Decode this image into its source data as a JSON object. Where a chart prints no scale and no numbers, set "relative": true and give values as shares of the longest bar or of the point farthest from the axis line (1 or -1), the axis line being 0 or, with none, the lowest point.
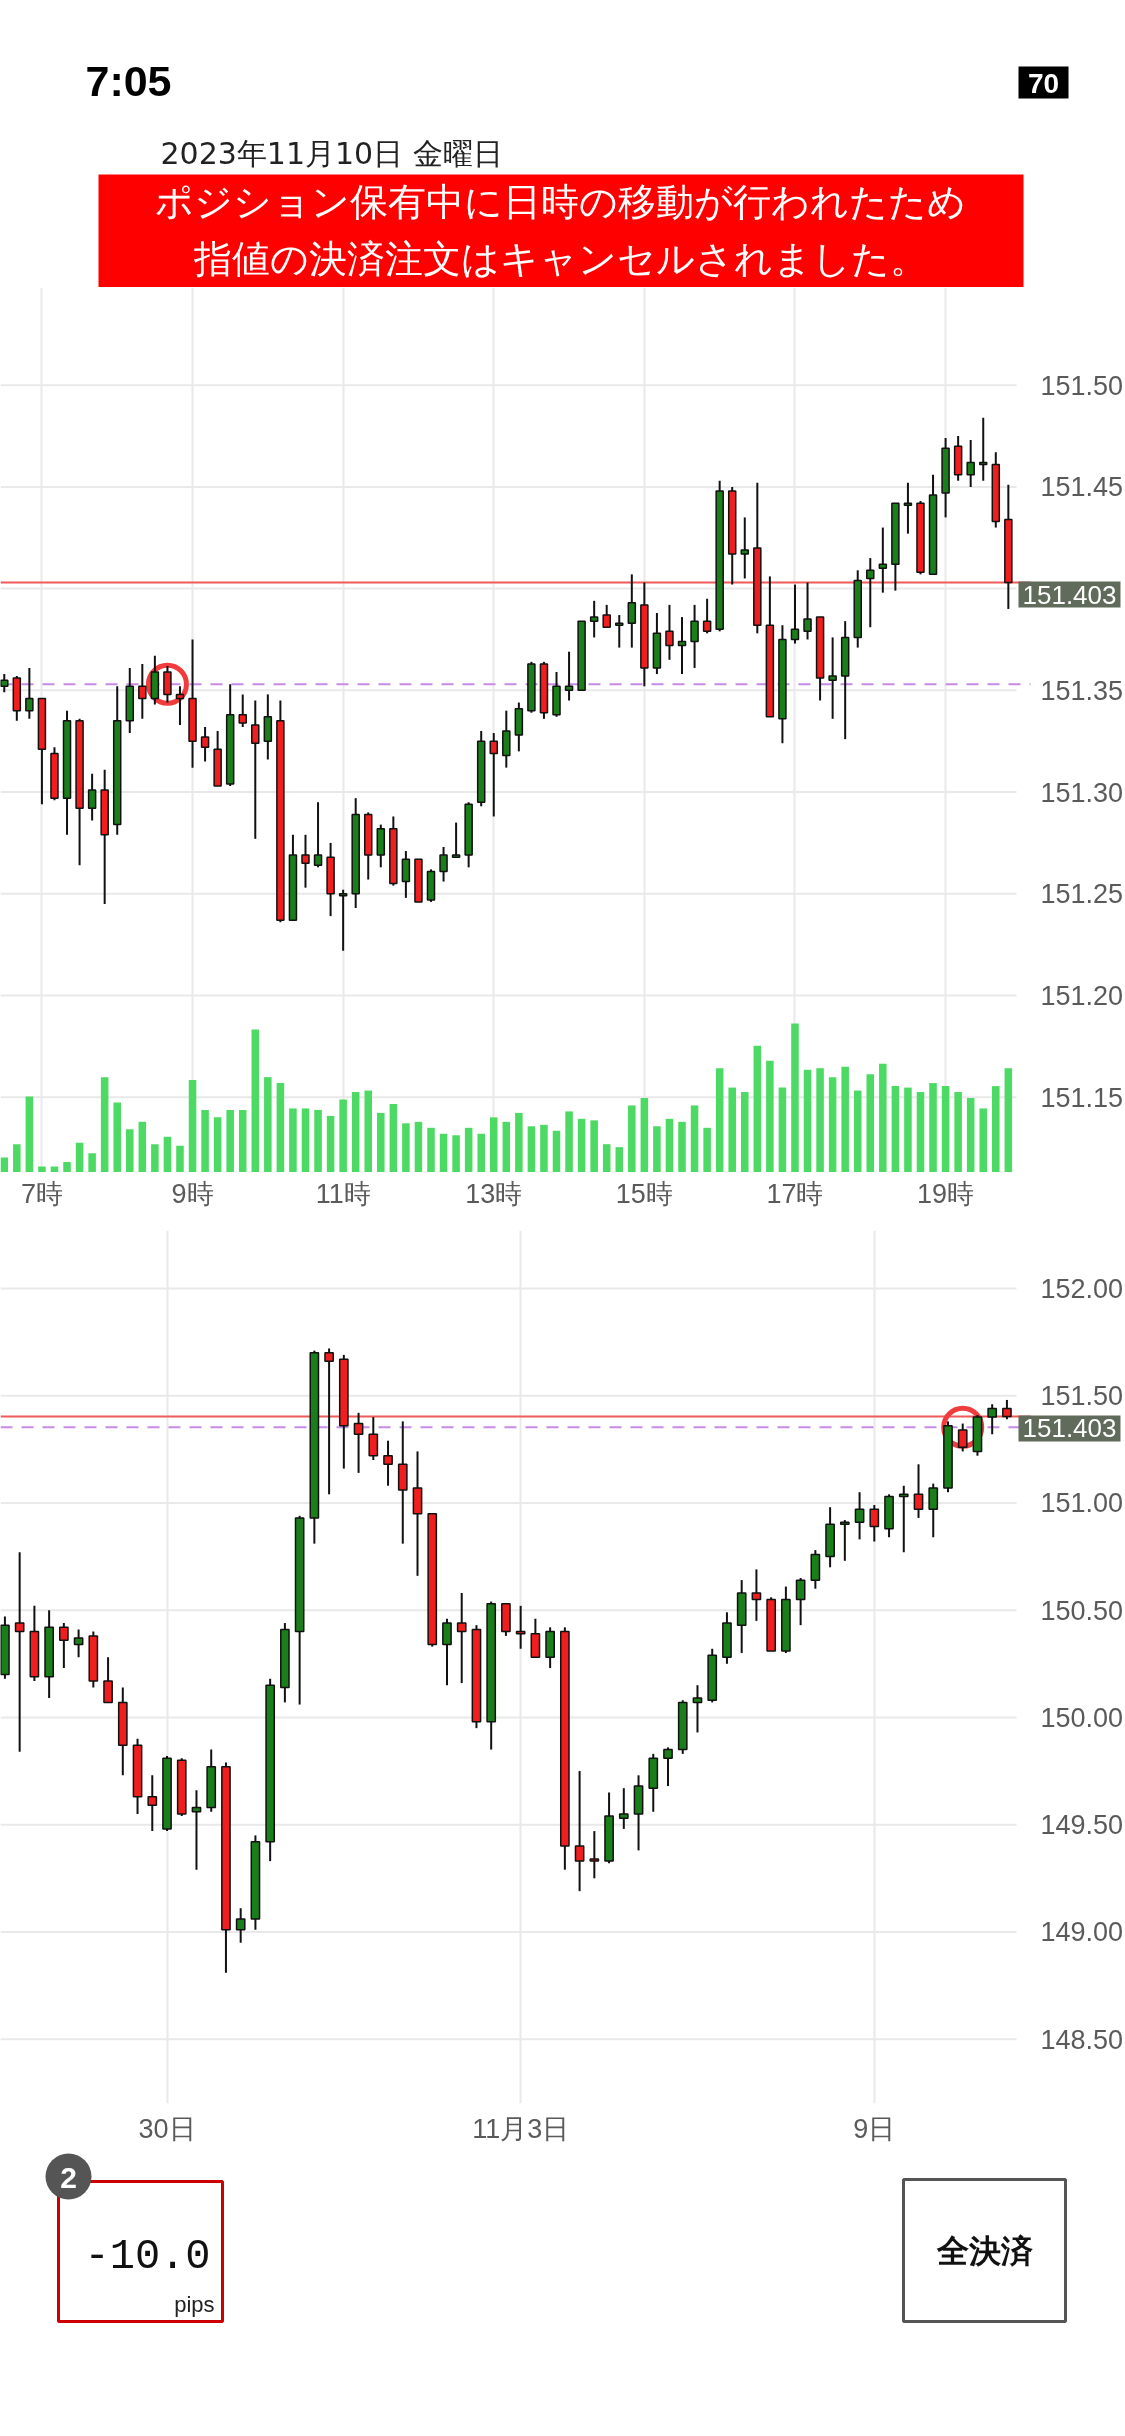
{
  "chart_data": [
    {
      "type": "candlestick",
      "title": "2023年11月10日 金曜日",
      "annotations": [
        "7:05",
        "70",
        "ポジション保有中に日時の移動が行われたため",
        "指値の決済注文はキャンセルされました。"
      ],
      "categories": [
        null,
        null,
        null,
        "7時",
        null,
        null,
        null,
        null,
        null,
        null,
        null,
        null,
        null,
        null,
        null,
        "9時",
        null,
        null,
        null,
        null,
        null,
        null,
        null,
        null,
        null,
        null,
        null,
        "11時",
        null,
        null,
        null,
        null,
        null,
        null,
        null,
        null,
        null,
        null,
        null,
        "13時",
        null,
        null,
        null,
        null,
        null,
        null,
        null,
        null,
        null,
        null,
        null,
        "15時",
        null,
        null,
        null,
        null,
        null,
        null,
        null,
        null,
        null,
        null,
        null,
        "17時",
        null,
        null,
        null,
        null,
        null,
        null,
        null,
        null,
        null,
        null,
        null,
        "19時",
        null,
        null,
        null,
        null,
        null
      ],
      "ohlc": [
        [
          151.352,
          151.358,
          151.349,
          151.355
        ],
        [
          151.356,
          151.357,
          151.335,
          151.34
        ],
        [
          151.34,
          151.361,
          151.336,
          151.346
        ],
        [
          151.346,
          151.346,
          151.294,
          151.321
        ],
        [
          151.319,
          151.322,
          151.296,
          151.297
        ],
        [
          151.297,
          151.34,
          151.279,
          151.335
        ],
        [
          151.335,
          151.336,
          151.264,
          151.292
        ],
        [
          151.292,
          151.309,
          151.286,
          151.301
        ],
        [
          151.301,
          151.311,
          151.245,
          151.279
        ],
        [
          151.284,
          151.352,
          151.279,
          151.335
        ],
        [
          151.335,
          151.361,
          151.329,
          151.352
        ],
        [
          151.352,
          151.363,
          151.336,
          151.346
        ],
        [
          151.346,
          151.367,
          151.343,
          151.359
        ],
        [
          151.359,
          151.362,
          151.344,
          151.348
        ],
        [
          151.348,
          151.352,
          151.333,
          151.346
        ],
        [
          151.346,
          151.375,
          151.312,
          151.325
        ],
        [
          151.327,
          151.332,
          151.315,
          151.322
        ],
        [
          151.321,
          151.33,
          151.303,
          151.303
        ],
        [
          151.304,
          151.353,
          151.303,
          151.338
        ],
        [
          151.338,
          151.348,
          151.332,
          151.334
        ],
        [
          151.333,
          151.345,
          151.277,
          151.324
        ],
        [
          151.325,
          151.348,
          151.316,
          151.337
        ],
        [
          151.335,
          151.345,
          151.236,
          151.237
        ],
        [
          151.237,
          151.279,
          151.237,
          151.269
        ],
        [
          151.269,
          151.279,
          151.253,
          151.265
        ],
        [
          151.264,
          151.295,
          151.263,
          151.269
        ],
        [
          151.268,
          151.275,
          151.239,
          151.25
        ],
        [
          151.249,
          151.252,
          151.222,
          151.25
        ],
        [
          151.25,
          151.297,
          151.243,
          151.289
        ],
        [
          151.289,
          151.29,
          151.257,
          151.269
        ],
        [
          151.269,
          151.284,
          151.263,
          151.282
        ],
        [
          151.282,
          151.288,
          151.254,
          151.255
        ],
        [
          151.256,
          151.271,
          151.248,
          151.267
        ],
        [
          151.267,
          151.267,
          151.246,
          151.246
        ],
        [
          151.247,
          151.262,
          151.246,
          151.261
        ],
        [
          151.261,
          151.273,
          151.256,
          151.269
        ],
        [
          151.268,
          151.285,
          151.268,
          151.269
        ],
        [
          151.269,
          151.295,
          151.263,
          151.294
        ],
        [
          151.295,
          151.33,
          151.293,
          151.325
        ],
        [
          151.325,
          151.329,
          151.288,
          151.319
        ],
        [
          151.318,
          151.34,
          151.312,
          151.33
        ],
        [
          151.328,
          151.344,
          151.32,
          151.341
        ],
        [
          151.34,
          151.364,
          151.339,
          151.363
        ],
        [
          151.363,
          151.364,
          151.336,
          151.339
        ],
        [
          151.338,
          151.359,
          151.337,
          151.352
        ],
        [
          151.35,
          151.369,
          151.345,
          151.352
        ],
        [
          151.35,
          151.384,
          151.35,
          151.384
        ],
        [
          151.384,
          151.394,
          151.376,
          151.386
        ],
        [
          151.387,
          151.392,
          151.381,
          151.381
        ],
        [
          151.382,
          151.387,
          151.371,
          151.383
        ],
        [
          151.383,
          151.407,
          151.371,
          151.393
        ],
        [
          151.392,
          151.403,
          151.352,
          151.361
        ],
        [
          151.361,
          151.388,
          151.358,
          151.378
        ],
        [
          151.379,
          151.392,
          151.365,
          151.372
        ],
        [
          151.372,
          151.386,
          151.358,
          151.374
        ],
        [
          151.374,
          151.392,
          151.361,
          151.384
        ],
        [
          151.384,
          151.395,
          151.378,
          151.379
        ],
        [
          151.38,
          151.453,
          151.379,
          151.448
        ],
        [
          151.448,
          151.45,
          151.402,
          151.417
        ],
        [
          151.417,
          151.435,
          151.405,
          151.419
        ],
        [
          151.42,
          151.452,
          151.378,
          151.382
        ],
        [
          151.382,
          151.406,
          151.337,
          151.337
        ],
        [
          151.336,
          151.382,
          151.324,
          151.375
        ],
        [
          151.375,
          151.402,
          151.373,
          151.38
        ],
        [
          151.379,
          151.403,
          151.375,
          151.385
        ],
        [
          151.386,
          151.386,
          151.345,
          151.356
        ],
        [
          151.355,
          151.376,
          151.336,
          151.357
        ],
        [
          151.357,
          151.384,
          151.326,
          151.376
        ],
        [
          151.376,
          151.409,
          151.371,
          151.404
        ],
        [
          151.405,
          151.415,
          151.381,
          151.409
        ],
        [
          151.41,
          151.43,
          151.398,
          151.412
        ],
        [
          151.412,
          151.442,
          151.399,
          151.442
        ],
        [
          151.441,
          151.452,
          151.427,
          151.442
        ],
        [
          151.442,
          151.443,
          151.407,
          151.408
        ],
        [
          151.407,
          151.456,
          151.407,
          151.446
        ],
        [
          151.447,
          151.474,
          151.435,
          151.469
        ],
        [
          151.47,
          151.475,
          151.453,
          151.456
        ],
        [
          151.456,
          151.473,
          151.45,
          151.462
        ],
        [
          151.461,
          151.484,
          151.453,
          151.462
        ],
        [
          151.461,
          151.467,
          151.43,
          151.433
        ],
        [
          151.434,
          151.451,
          151.39,
          151.403
        ]
      ],
      "colors": [
        "#1a7f1a",
        "#f01e1e",
        "#1a7f1a",
        "#f01e1e",
        "#f01e1e",
        "#1a7f1a",
        "#f01e1e",
        "#1a7f1a",
        "#f01e1e",
        "#1a7f1a",
        "#1a7f1a",
        "#f01e1e",
        "#1a7f1a",
        "#f01e1e",
        "#f01e1e",
        "#f01e1e",
        "#f01e1e",
        "#f01e1e",
        "#1a7f1a",
        "#f01e1e",
        "#f01e1e",
        "#1a7f1a",
        "#f01e1e",
        "#1a7f1a",
        "#f01e1e",
        "#1a7f1a",
        "#f01e1e",
        "#1a7f1a",
        "#1a7f1a",
        "#f01e1e",
        "#1a7f1a",
        "#f01e1e",
        "#1a7f1a",
        "#f01e1e",
        "#1a7f1a",
        "#1a7f1a",
        "#1a7f1a",
        "#1a7f1a",
        "#1a7f1a",
        "#f01e1e",
        "#1a7f1a",
        "#1a7f1a",
        "#1a7f1a",
        "#f01e1e",
        "#1a7f1a",
        "#1a7f1a",
        "#1a7f1a",
        "#1a7f1a",
        "#f01e1e",
        "#1a7f1a",
        "#1a7f1a",
        "#f01e1e",
        "#1a7f1a",
        "#f01e1e",
        "#1a7f1a",
        "#1a7f1a",
        "#f01e1e",
        "#1a7f1a",
        "#f01e1e",
        "#1a7f1a",
        "#f01e1e",
        "#f01e1e",
        "#1a7f1a",
        "#1a7f1a",
        "#1a7f1a",
        "#f01e1e",
        "#1a7f1a",
        "#1a7f1a",
        "#1a7f1a",
        "#1a7f1a",
        "#1a7f1a",
        "#1a7f1a",
        "#1a7f1a",
        "#f01e1e",
        "#1a7f1a",
        "#1a7f1a",
        "#f01e1e",
        "#1a7f1a",
        "#1a7f1a",
        "#f01e1e",
        "#f01e1e"
      ],
      "series": [
        {
          "type": "scatter",
          "marker": "circle",
          "color": "#f03c3c",
          "values": [
            null,
            null,
            null,
            null,
            null,
            null,
            null,
            null,
            null,
            null,
            null,
            null,
            null,
            151.353,
            null,
            null,
            null,
            null,
            null,
            null,
            null,
            null,
            null,
            null,
            null,
            null,
            null,
            null,
            null,
            null,
            null,
            null,
            null,
            null,
            null,
            null,
            null,
            null,
            null,
            null,
            null,
            null,
            null,
            null,
            null,
            null,
            null,
            null,
            null,
            null,
            null,
            null,
            null,
            null,
            null,
            null,
            null,
            null,
            null,
            null,
            null,
            null,
            null,
            null,
            null,
            null,
            null,
            null,
            null,
            null,
            null,
            null,
            null,
            null,
            null,
            null,
            null,
            null,
            null,
            null,
            null
          ]
        }
      ],
      "ylim": [
        151.113,
        151.548
      ],
      "yticks": [
        151.15,
        {
          "value": 151.2,
          "label": "151.20"
        },
        151.25,
        {
          "value": 151.3,
          "label": "151.30"
        },
        151.35,
        {
          "value": 151.4,
          "label": null
        },
        151.45,
        {
          "value": 151.5,
          "label": "151.50"
        }
      ],
      "grid": true,
      "ref_lines": [
        {
          "axis": "y",
          "value": 151.403,
          "label": "151.403",
          "color": "#f05a5a"
        },
        {
          "axis": "y",
          "value": 151.353,
          "color": "#c78be6",
          "line_style": "dashed"
        }
      ]
    },
    {
      "type": "bar",
      "relative": true,
      "color": "#4cd964",
      "categories": [
        null,
        null,
        null,
        null,
        null,
        null,
        null,
        null,
        null,
        null,
        null,
        null,
        null,
        null,
        null,
        null,
        null,
        null,
        null,
        null,
        null,
        null,
        null,
        null,
        null,
        null,
        null,
        null,
        null,
        null,
        null,
        null,
        null,
        null,
        null,
        null,
        null,
        null,
        null,
        null,
        null,
        null,
        null,
        null,
        null,
        null,
        null,
        null,
        null,
        null,
        null,
        null,
        null,
        null,
        null,
        null,
        null,
        null,
        null,
        null,
        null,
        null,
        null,
        null,
        null,
        null,
        null,
        null,
        null,
        null,
        null,
        null,
        null,
        null,
        null,
        null,
        null,
        null,
        null,
        null,
        null
      ],
      "values": [
        0.1,
        0.19,
        0.51,
        0.04,
        0.04,
        0.07,
        0.2,
        0.13,
        0.64,
        0.47,
        0.29,
        0.34,
        0.19,
        0.24,
        0.18,
        0.62,
        0.42,
        0.37,
        0.42,
        0.42,
        0.96,
        0.64,
        0.6,
        0.43,
        0.43,
        0.42,
        0.38,
        0.49,
        0.54,
        0.55,
        0.4,
        0.46,
        0.33,
        0.34,
        0.3,
        0.26,
        0.25,
        0.3,
        0.26,
        0.37,
        0.34,
        0.4,
        0.31,
        0.32,
        0.28,
        0.41,
        0.36,
        0.35,
        0.19,
        0.17,
        0.45,
        0.5,
        0.31,
        0.36,
        0.34,
        0.45,
        0.3,
        0.7,
        0.57,
        0.54,
        0.85,
        0.75,
        0.57,
        1,
        0.69,
        0.7,
        0.64,
        0.71,
        0.55,
        0.66,
        0.73,
        0.58,
        0.57,
        0.54,
        0.6,
        0.58,
        0.54,
        0.5,
        0.43,
        0.58,
        0.7
      ]
    },
    {
      "type": "candlestick",
      "annotations": [
        "2",
        "-10.0",
        "pips",
        "全決済"
      ],
      "categories": [
        null,
        null,
        null,
        null,
        null,
        null,
        null,
        null,
        null,
        null,
        null,
        "30日",
        null,
        null,
        null,
        null,
        null,
        null,
        null,
        null,
        null,
        null,
        null,
        null,
        null,
        null,
        null,
        null,
        null,
        null,
        null,
        null,
        null,
        null,
        null,
        "11月3日",
        null,
        null,
        null,
        null,
        null,
        null,
        null,
        null,
        null,
        null,
        null,
        null,
        null,
        null,
        null,
        null,
        null,
        null,
        null,
        null,
        null,
        null,
        null,
        "9日",
        null,
        null,
        null,
        null,
        null,
        null,
        null,
        null,
        null
      ],
      "ohlc": [
        [
          150.2,
          150.47,
          150.18,
          150.43
        ],
        [
          150.44,
          150.77,
          149.84,
          150.4
        ],
        [
          150.4,
          150.52,
          150.17,
          150.19
        ],
        [
          150.19,
          150.5,
          150.09,
          150.42
        ],
        [
          150.42,
          150.44,
          150.23,
          150.36
        ],
        [
          150.34,
          150.41,
          150.28,
          150.37
        ],
        [
          150.38,
          150.4,
          150.14,
          150.17
        ],
        [
          150.17,
          150.28,
          150.07,
          150.07
        ],
        [
          150.07,
          150.14,
          149.73,
          149.87
        ],
        [
          149.87,
          149.9,
          149.55,
          149.63
        ],
        [
          149.63,
          149.73,
          149.47,
          149.59
        ],
        [
          149.48,
          149.82,
          149.47,
          149.81
        ],
        [
          149.8,
          149.81,
          149.54,
          149.55
        ],
        [
          149.56,
          149.66,
          149.29,
          149.58
        ],
        [
          149.58,
          149.85,
          149.56,
          149.77
        ],
        [
          149.77,
          149.79,
          148.81,
          149.01
        ],
        [
          149.01,
          149.11,
          148.95,
          149.06
        ],
        [
          149.06,
          149.45,
          149.01,
          149.42
        ],
        [
          149.42,
          150.18,
          149.33,
          150.15
        ],
        [
          150.14,
          150.44,
          150.07,
          150.41
        ],
        [
          150.4,
          150.94,
          150.06,
          150.93
        ],
        [
          150.93,
          151.71,
          150.81,
          151.7
        ],
        [
          151.7,
          151.72,
          151.04,
          151.66
        ],
        [
          151.67,
          151.69,
          151.16,
          151.36
        ],
        [
          151.37,
          151.42,
          151.14,
          151.32
        ],
        [
          151.32,
          151.4,
          151.2,
          151.22
        ],
        [
          151.22,
          151.29,
          151.08,
          151.18
        ],
        [
          151.18,
          151.38,
          150.81,
          151.06
        ],
        [
          151.07,
          151.24,
          150.66,
          150.95
        ],
        [
          150.95,
          150.95,
          150.33,
          150.34
        ],
        [
          150.34,
          150.46,
          150.15,
          150.44
        ],
        [
          150.44,
          150.58,
          150.16,
          150.4
        ],
        [
          150.41,
          150.43,
          149.95,
          149.98
        ],
        [
          149.98,
          150.54,
          149.85,
          150.53
        ],
        [
          150.53,
          150.53,
          150.38,
          150.4
        ],
        [
          150.4,
          150.52,
          150.32,
          150.39
        ],
        [
          150.39,
          150.46,
          150.28,
          150.28
        ],
        [
          150.28,
          150.42,
          150.23,
          150.4
        ],
        [
          150.4,
          150.42,
          149.29,
          149.4
        ],
        [
          149.4,
          149.75,
          149.19,
          149.33
        ],
        [
          149.34,
          149.47,
          149.25,
          149.33
        ],
        [
          149.33,
          149.65,
          149.32,
          149.54
        ],
        [
          149.53,
          149.67,
          149.48,
          149.55
        ],
        [
          149.55,
          149.73,
          149.38,
          149.68
        ],
        [
          149.67,
          149.83,
          149.56,
          149.81
        ],
        [
          149.81,
          149.86,
          149.68,
          149.85
        ],
        [
          149.85,
          150.08,
          149.83,
          150.07
        ],
        [
          150.07,
          150.15,
          149.93,
          150.09
        ],
        [
          150.08,
          150.32,
          150.07,
          150.29
        ],
        [
          150.28,
          150.49,
          150.25,
          150.44
        ],
        [
          150.43,
          150.64,
          150.3,
          150.58
        ],
        [
          150.58,
          150.69,
          150.45,
          150.55
        ],
        [
          150.55,
          150.56,
          150.31,
          150.31
        ],
        [
          150.31,
          150.61,
          150.3,
          150.55
        ],
        [
          150.55,
          150.65,
          150.43,
          150.64
        ],
        [
          150.64,
          150.78,
          150.6,
          150.76
        ],
        [
          150.75,
          150.98,
          150.7,
          150.9
        ],
        [
          150.9,
          150.92,
          150.73,
          150.91
        ],
        [
          150.91,
          151.05,
          150.83,
          150.97
        ],
        [
          150.97,
          150.99,
          150.82,
          150.89
        ],
        [
          150.88,
          151.04,
          150.84,
          151.03
        ],
        [
          151.03,
          151.08,
          150.77,
          151.04
        ],
        [
          151.04,
          151.18,
          150.93,
          150.97
        ],
        [
          150.97,
          151.09,
          150.84,
          151.07
        ],
        [
          151.07,
          151.38,
          151.05,
          151.36
        ],
        [
          151.34,
          151.37,
          151.24,
          151.26
        ],
        [
          151.24,
          151.41,
          151.22,
          151.4
        ],
        [
          151.4,
          151.46,
          151.32,
          151.44
        ],
        [
          151.44,
          151.48,
          151.39,
          151.403
        ]
      ],
      "colors": [
        "#1a7f1a",
        "#f01e1e",
        "#f01e1e",
        "#1a7f1a",
        "#f01e1e",
        "#1a7f1a",
        "#f01e1e",
        "#f01e1e",
        "#f01e1e",
        "#f01e1e",
        "#f01e1e",
        "#1a7f1a",
        "#f01e1e",
        "#1a7f1a",
        "#1a7f1a",
        "#f01e1e",
        "#1a7f1a",
        "#1a7f1a",
        "#1a7f1a",
        "#1a7f1a",
        "#1a7f1a",
        "#1a7f1a",
        "#f01e1e",
        "#f01e1e",
        "#f01e1e",
        "#f01e1e",
        "#f01e1e",
        "#f01e1e",
        "#f01e1e",
        "#f01e1e",
        "#1a7f1a",
        "#f01e1e",
        "#f01e1e",
        "#1a7f1a",
        "#f01e1e",
        "#f01e1e",
        "#f01e1e",
        "#1a7f1a",
        "#f01e1e",
        "#f01e1e",
        "#f01e1e",
        "#1a7f1a",
        "#1a7f1a",
        "#1a7f1a",
        "#1a7f1a",
        "#1a7f1a",
        "#1a7f1a",
        "#1a7f1a",
        "#1a7f1a",
        "#1a7f1a",
        "#1a7f1a",
        "#f01e1e",
        "#f01e1e",
        "#1a7f1a",
        "#1a7f1a",
        "#1a7f1a",
        "#1a7f1a",
        "#1a7f1a",
        "#1a7f1a",
        "#f01e1e",
        "#1a7f1a",
        "#1a7f1a",
        "#f01e1e",
        "#1a7f1a",
        "#1a7f1a",
        "#f01e1e",
        "#1a7f1a",
        "#1a7f1a",
        "#f01e1e"
      ],
      "series": [
        {
          "type": "scatter",
          "marker": "circle",
          "color": "#f03c3c",
          "values": [
            null,
            null,
            null,
            null,
            null,
            null,
            null,
            null,
            null,
            null,
            null,
            null,
            null,
            null,
            null,
            null,
            null,
            null,
            null,
            null,
            null,
            null,
            null,
            null,
            null,
            null,
            null,
            null,
            null,
            null,
            null,
            null,
            null,
            null,
            null,
            null,
            null,
            null,
            null,
            null,
            null,
            null,
            null,
            null,
            null,
            null,
            null,
            null,
            null,
            null,
            null,
            null,
            null,
            null,
            null,
            null,
            null,
            null,
            null,
            null,
            null,
            null,
            null,
            null,
            null,
            151.353,
            null,
            null,
            null
          ]
        }
      ],
      "ylim": [
        148.2,
        152.27
      ],
      "yticks": [
        {
          "value": 148.5,
          "label": "148.50"
        },
        {
          "value": 149,
          "label": "149.00"
        },
        {
          "value": 149.5,
          "label": "149.50"
        },
        {
          "value": 150,
          "label": "150.00"
        },
        {
          "value": 150.5,
          "label": "150.50"
        },
        {
          "value": 151,
          "label": "151.00"
        },
        {
          "value": 151.5,
          "label": "151.50"
        },
        {
          "value": 152,
          "label": "152.00"
        }
      ],
      "grid": true,
      "ref_lines": [
        {
          "axis": "y",
          "value": 151.403,
          "label": "151.403",
          "color": "#f05a5a"
        },
        {
          "axis": "y",
          "value": 151.353,
          "color": "#c78be6",
          "line_style": "dashed"
        }
      ]
    }
  ]
}
